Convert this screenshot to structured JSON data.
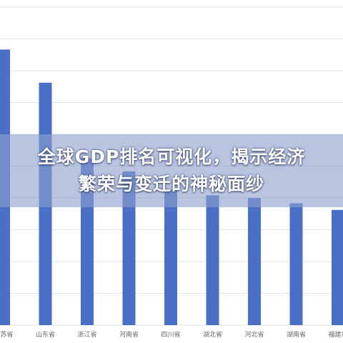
{
  "overlay": {
    "title": "全球GDP排名可视化，揭示经济繁荣与变迁的神秘面纱"
  },
  "colors": {
    "bar": "#4a6fc7",
    "grid": "#e3e3e3",
    "tick_text": "#666666",
    "overlay_bg": "#8ca0cd"
  },
  "chart_data": {
    "type": "bar",
    "title": "",
    "xlabel": "",
    "ylabel": "",
    "categories": [
      "江苏省",
      "山东省",
      "浙江省",
      "河南省",
      "四川省",
      "湖北省",
      "河北省",
      "湖南省",
      "福建省"
    ],
    "values": [
      104,
      91.5,
      63,
      58,
      51,
      49,
      48,
      46,
      43.5
    ],
    "ylim": [
      0,
      120
    ],
    "grid": true,
    "legend": "none"
  }
}
